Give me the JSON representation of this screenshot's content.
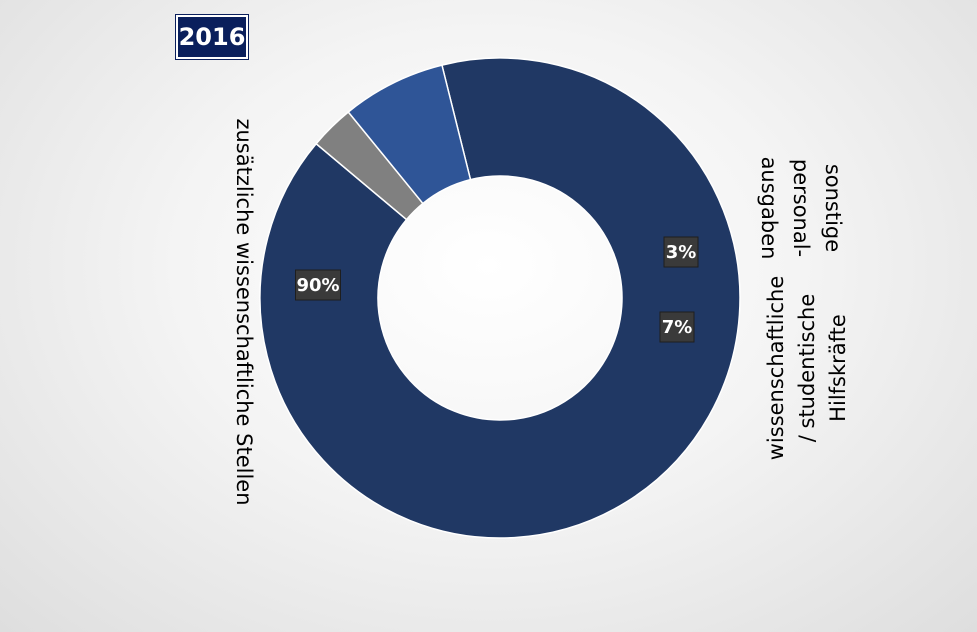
{
  "chart_data": {
    "type": "pie",
    "variant": "donut",
    "title": "2016",
    "categories": [
      "zusätzliche wissenschaftliche Stellen",
      "sonstige Personalausgaben",
      "wissenschaftliche / studentische Hilfskräfte"
    ],
    "category_label_lines": [
      [
        "zusätzliche wissenschaftliche Stellen"
      ],
      [
        "sonstige",
        "personal-",
        "ausgaben"
      ],
      [
        "wissenschaftliche",
        "/ studentische",
        "Hilfskräfte"
      ]
    ],
    "values": [
      90,
      3,
      7
    ],
    "value_labels": [
      "90%",
      "3%",
      "7%"
    ],
    "colors": [
      "#203864",
      "#808080",
      "#2f5597"
    ],
    "legend": "none",
    "grid": false
  }
}
